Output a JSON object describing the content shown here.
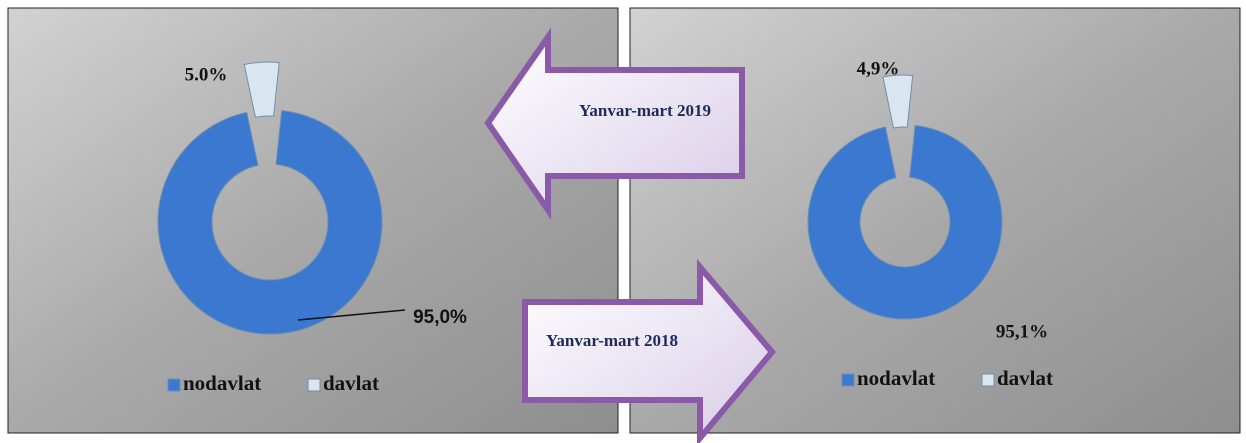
{
  "chart_data": [
    {
      "type": "donut",
      "annotation": "Yanvar-mart 2019",
      "categories": [
        "nodavlat",
        "davlat"
      ],
      "values": [
        95.0,
        5.0
      ],
      "value_labels": [
        "95,0%",
        "5.0%"
      ],
      "colors": [
        "#3b78cf",
        "#d9e6ef"
      ],
      "legend": "bottom",
      "exploded": [
        false,
        true
      ]
    },
    {
      "type": "donut",
      "annotation": "Yanvar-mart 2018",
      "categories": [
        "nodavlat",
        "davlat"
      ],
      "values": [
        95.1,
        4.9
      ],
      "value_labels": [
        "95,1%",
        "4,9%"
      ],
      "colors": [
        "#3b78cf",
        "#d9e6ef"
      ],
      "legend": "bottom",
      "exploded": [
        false,
        true
      ]
    }
  ]
}
